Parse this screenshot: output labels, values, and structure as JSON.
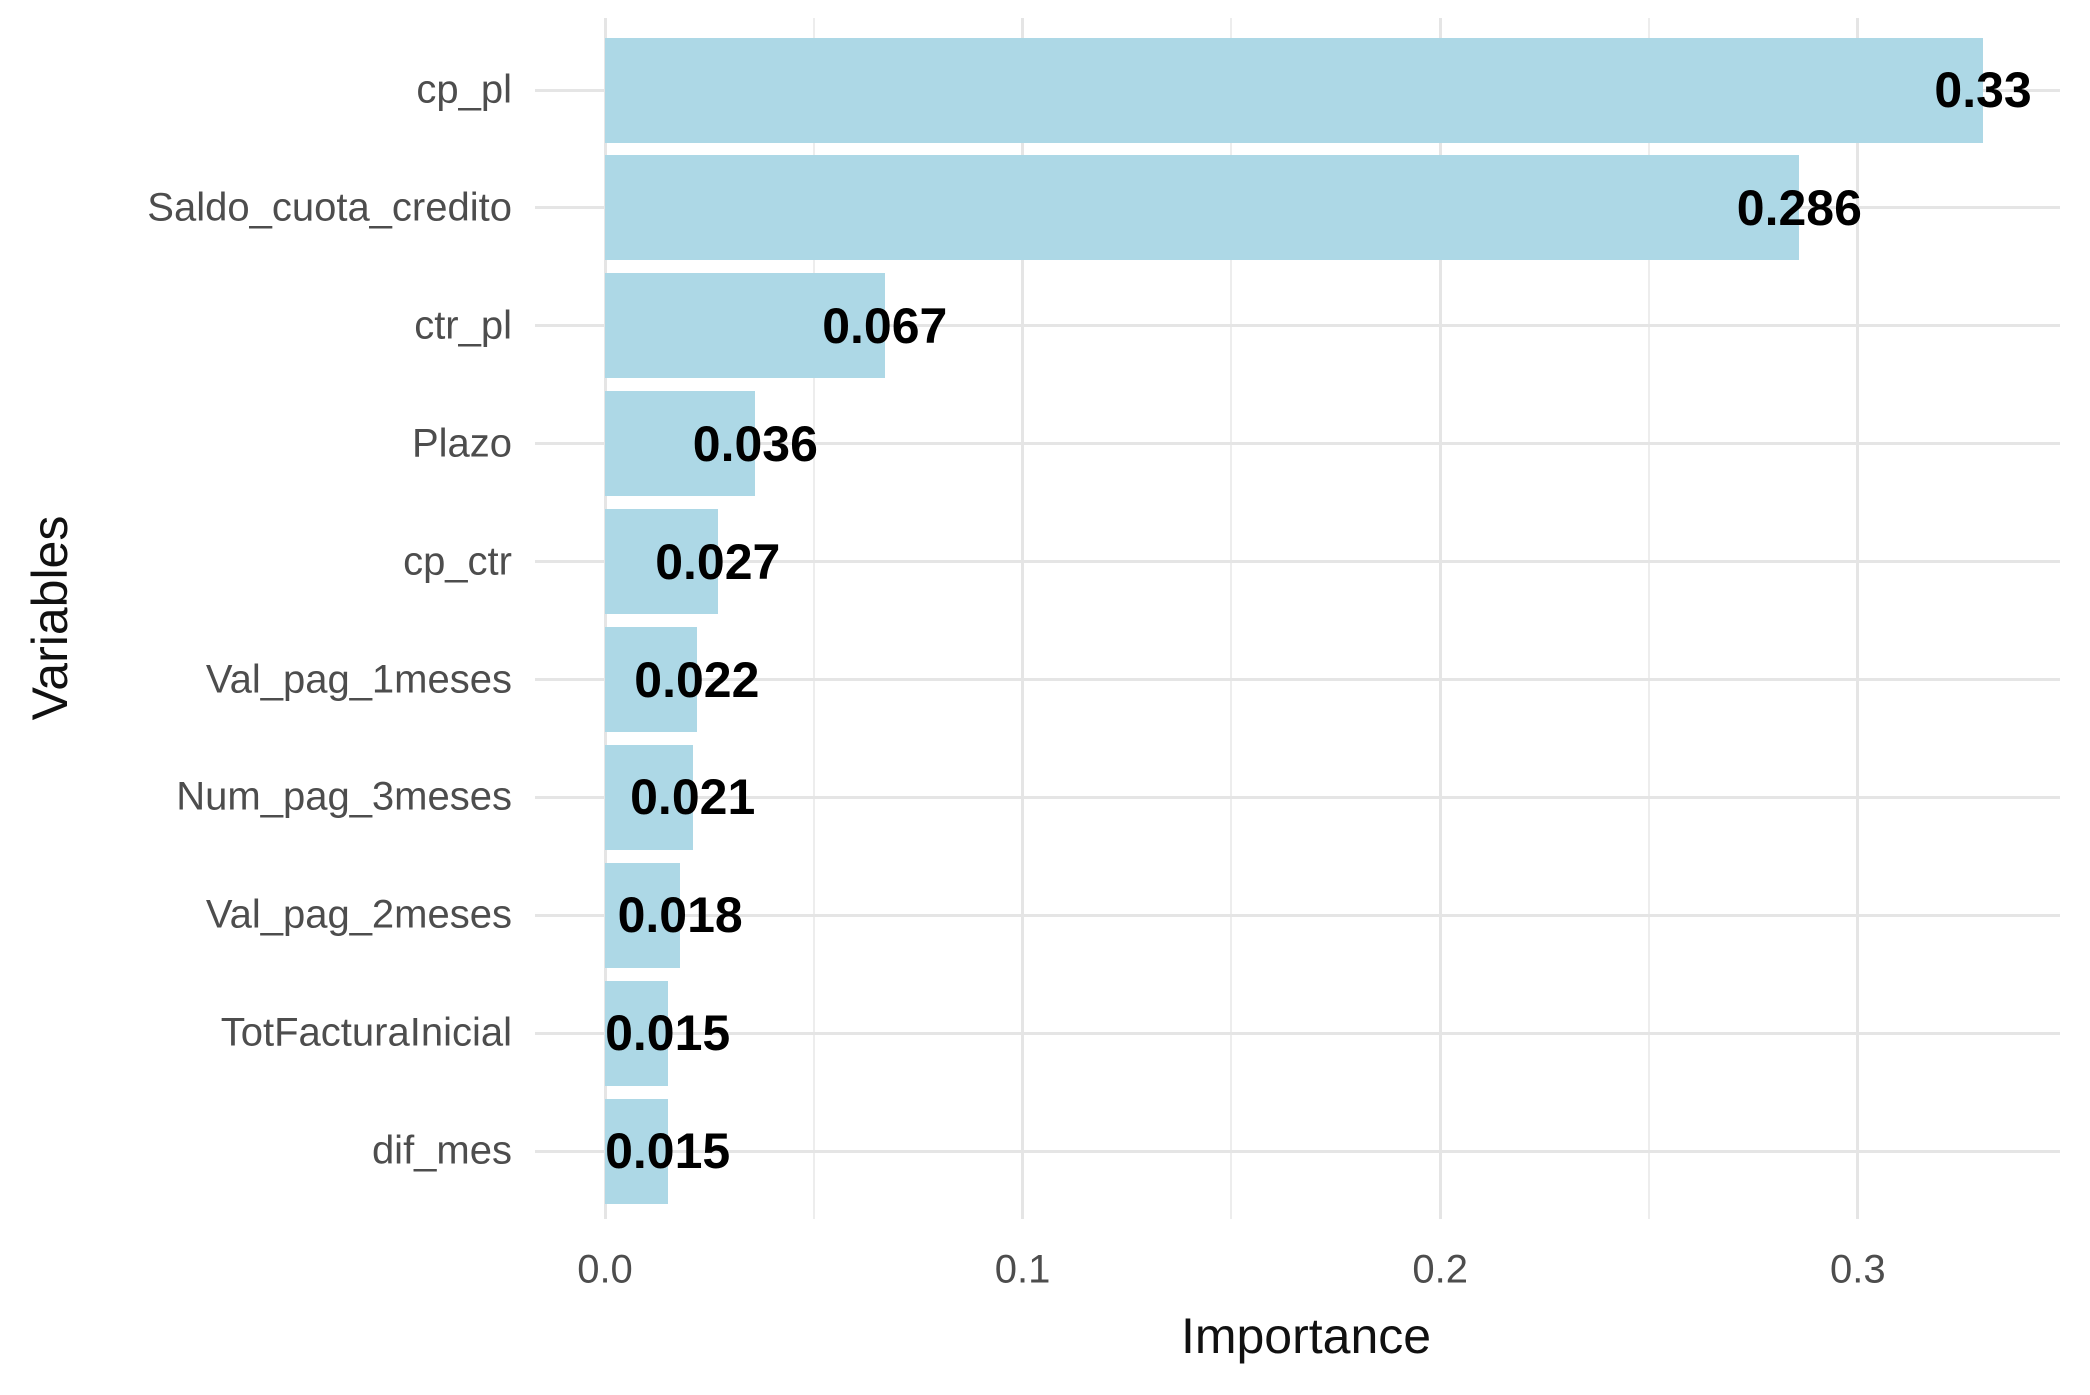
{
  "chart_data": {
    "type": "bar",
    "orientation": "horizontal",
    "title": "",
    "xlabel": "Importance",
    "ylabel": "Variables",
    "categories": [
      "cp_pl",
      "Saldo_cuota_credito",
      "ctr_pl",
      "Plazo",
      "cp_ctr",
      "Val_pag_1meses",
      "Num_pag_3meses",
      "Val_pag_2meses",
      "TotFacturaInicial",
      "dif_mes"
    ],
    "values": [
      0.33,
      0.286,
      0.067,
      0.036,
      0.027,
      0.022,
      0.021,
      0.018,
      0.015,
      0.015
    ],
    "value_labels": [
      "0.33",
      "0.286",
      "0.067",
      "0.036",
      "0.027",
      "0.022",
      "0.021",
      "0.018",
      "0.015",
      "0.015"
    ],
    "x_ticks": [
      {
        "label": "0.0",
        "value": 0.0
      },
      {
        "label": "0.1",
        "value": 0.1
      },
      {
        "label": "0.2",
        "value": 0.2
      },
      {
        "label": "0.3",
        "value": 0.3
      }
    ],
    "x_minor_tick_values": [
      0.05,
      0.15,
      0.25
    ],
    "xlim": [
      -0.0165,
      0.3465
    ],
    "grid": true,
    "legend": false,
    "colors": {
      "bar_fill": "#ADD8E6",
      "grid_major": "#e5e5e5",
      "grid_minor": "#ededed",
      "axis_text": "#4d4d4d",
      "value_text": "#000000",
      "title_text": "#111111",
      "background": "#ffffff"
    }
  }
}
